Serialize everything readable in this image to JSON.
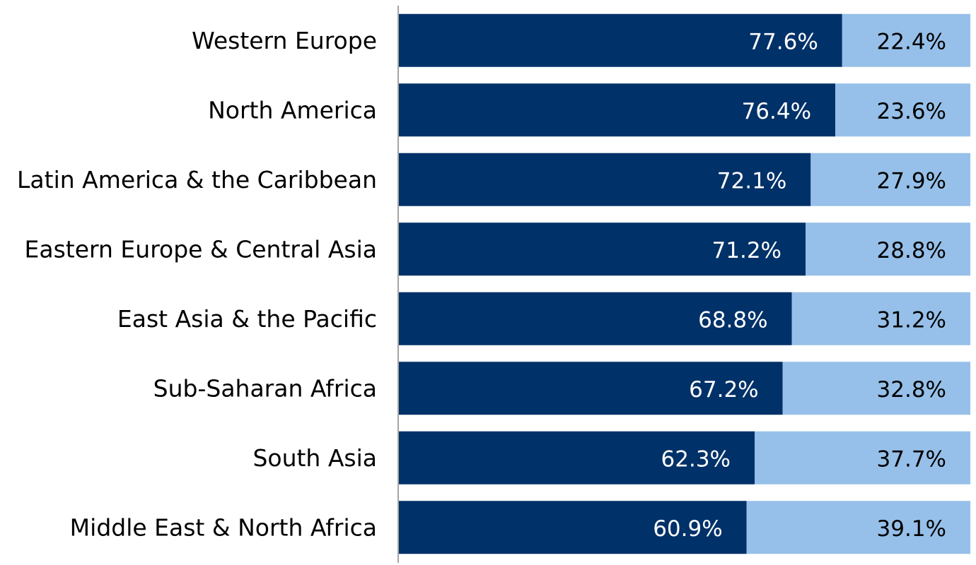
{
  "chart_data": {
    "type": "bar",
    "orientation": "horizontal",
    "stacked": true,
    "categories": [
      "Western Europe",
      "North America",
      "Latin America & the Caribbean",
      "Eastern Europe & Central Asia",
      "East Asia & the Pacific",
      "Sub-Saharan Africa",
      "South Asia",
      "Middle East & North Africa"
    ],
    "series": [
      {
        "values": [
          77.6,
          76.4,
          72.1,
          71.2,
          68.8,
          67.2,
          62.3,
          60.9
        ],
        "labels": [
          "77.6%",
          "76.4%",
          "72.1%",
          "71.2%",
          "68.8%",
          "67.2%",
          "62.3%",
          "60.9%"
        ],
        "color": "#003168",
        "label_color": "#ffffff"
      },
      {
        "values": [
          22.4,
          23.6,
          27.9,
          28.8,
          31.2,
          32.8,
          37.7,
          39.1
        ],
        "labels": [
          "22.4%",
          "23.6%",
          "27.9%",
          "28.8%",
          "31.2%",
          "32.8%",
          "37.7%",
          "39.1%"
        ],
        "color": "#96c0e9",
        "label_color": "#000000"
      }
    ],
    "xlim": [
      0,
      100
    ],
    "title": "",
    "xlabel": "",
    "ylabel": "",
    "grid": false,
    "legend": "none",
    "axis_color": "#a6a6a6"
  }
}
